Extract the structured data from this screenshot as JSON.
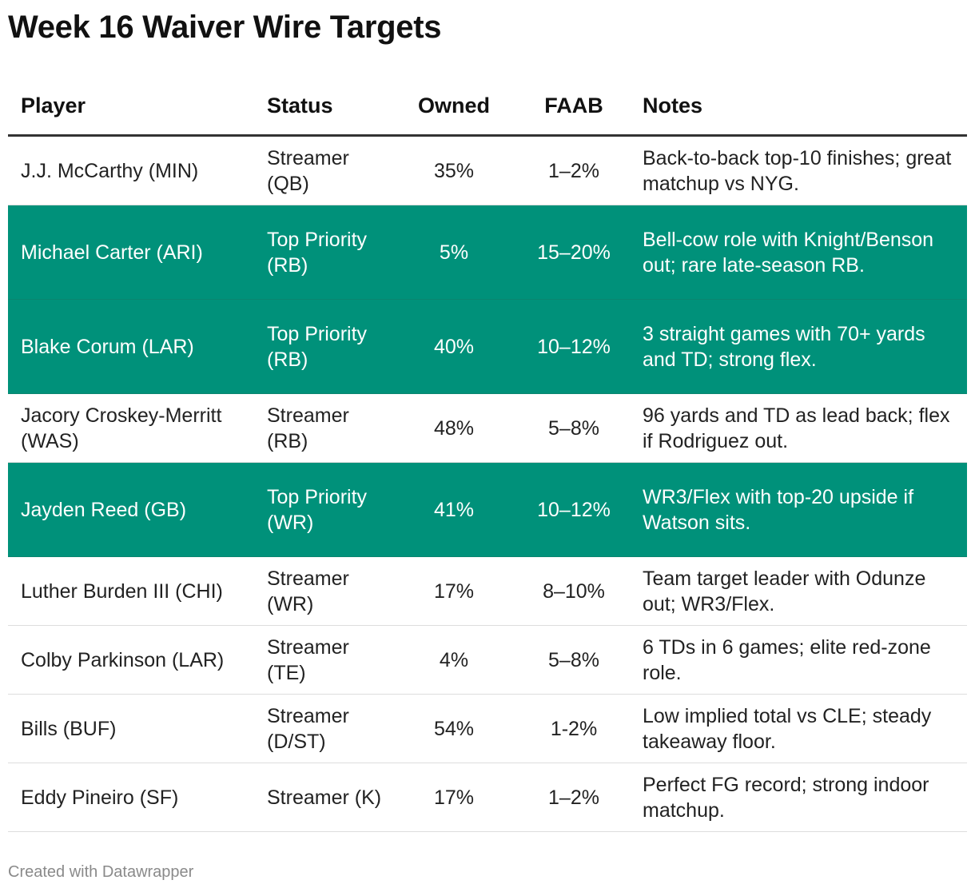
{
  "title": "Week 16 Waiver Wire Targets",
  "colors": {
    "highlight": "#00917a",
    "text": "#222222",
    "footer": "#8a8a8a"
  },
  "table": {
    "headers": [
      "Player",
      "Status",
      "Owned",
      "FAAB",
      "Notes"
    ],
    "rows": [
      {
        "player": "J.J. McCarthy (MIN)",
        "status": "Streamer (QB)",
        "owned": "35%",
        "faab": "1–2%",
        "notes": "Back-to-back top-10 finishes; great matchup vs NYG."
      },
      {
        "player": "Michael Carter (ARI)",
        "status": "Top Priority (RB)",
        "owned": "5%",
        "faab": "15–20%",
        "notes": "Bell-cow role with Knight/Benson out; rare late-season RB."
      },
      {
        "player": "Blake Corum (LAR)",
        "status": "Top Priority (RB)",
        "owned": "40%",
        "faab": "10–12%",
        "notes": "3 straight games with 70+ yards and TD; strong flex."
      },
      {
        "player": "Jacory Croskey-Merritt (WAS)",
        "status": "Streamer (RB)",
        "owned": "48%",
        "faab": "5–8%",
        "notes": "96 yards and TD as lead back; flex if Rodriguez out."
      },
      {
        "player": "Jayden Reed (GB)",
        "status": "Top Priority (WR)",
        "owned": "41%",
        "faab": "10–12%",
        "notes": "WR3/Flex with top-20 upside if Watson sits."
      },
      {
        "player": "Luther Burden III (CHI)",
        "status": "Streamer (WR)",
        "owned": "17%",
        "faab": "8–10%",
        "notes": "Team target leader with Odunze out; WR3/Flex."
      },
      {
        "player": "Colby Parkinson (LAR)",
        "status": "Streamer (TE)",
        "owned": "4%",
        "faab": "5–8%",
        "notes": "6 TDs in 6 games; elite red-zone role."
      },
      {
        "player": "Bills (BUF)",
        "status": "Streamer (D/ST)",
        "owned": "54%",
        "faab": "1-2%",
        "notes": "Low implied total vs CLE; steady takeaway floor."
      },
      {
        "player": "Eddy Pineiro (SF)",
        "status": "Streamer (K)",
        "owned": "17%",
        "faab": "1–2%",
        "notes": "Perfect FG record; strong indoor matchup."
      }
    ]
  },
  "footer": "Created with Datawrapper"
}
